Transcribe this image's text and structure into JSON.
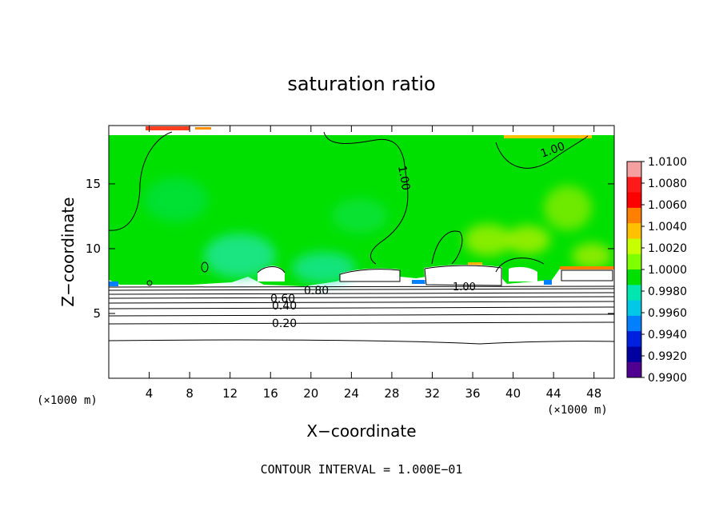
{
  "chart_data": {
    "type": "heatmap",
    "title": "saturation ratio",
    "xlabel": "X−coordinate",
    "ylabel": "Z−coordinate",
    "x_unit": "(×1000 m)",
    "z_unit": "(×1000 m)",
    "xlim": [
      0,
      50
    ],
    "ylim": [
      0,
      19.5
    ],
    "x_ticks": [
      4,
      8,
      12,
      16,
      20,
      24,
      28,
      32,
      36,
      40,
      44,
      48
    ],
    "y_ticks": [
      5,
      10,
      15
    ],
    "colorbar": {
      "range": [
        0.99,
        1.01
      ],
      "labels": [
        "1.0100",
        "1.0080",
        "1.0060",
        "1.0040",
        "1.0020",
        "1.0000",
        "0.9980",
        "0.9960",
        "0.9940",
        "0.9920",
        "0.9900"
      ],
      "colors": [
        "#f4a0a0",
        "#ff1a1a",
        "#ff0000",
        "#ff8000",
        "#ffc000",
        "#c8ff00",
        "#80ff00",
        "#00e000",
        "#00e6b0",
        "#00c8e6",
        "#0080ff",
        "#0020e0",
        "#0000a0",
        "#500090"
      ]
    },
    "contours": [
      {
        "level": "0.20",
        "label_x": 18.2,
        "label_z": 4.4
      },
      {
        "level": "0.40",
        "label_x": 18.2,
        "label_z": 5.6
      },
      {
        "level": "0.60",
        "label_x": 17.0,
        "label_z": 6.4
      },
      {
        "level": "0.80",
        "label_x": 20.2,
        "label_z": 7.0
      },
      {
        "level": "1.00",
        "label_x": 28.2,
        "label_z": 14.8
      },
      {
        "level": "1.00",
        "label_x": 44.4,
        "label_z": 17.5
      },
      {
        "level": "1.00",
        "label_x": 35.8,
        "label_z": 7.2
      }
    ],
    "footer": "CONTOUR INTERVAL = 1.000E−01"
  }
}
